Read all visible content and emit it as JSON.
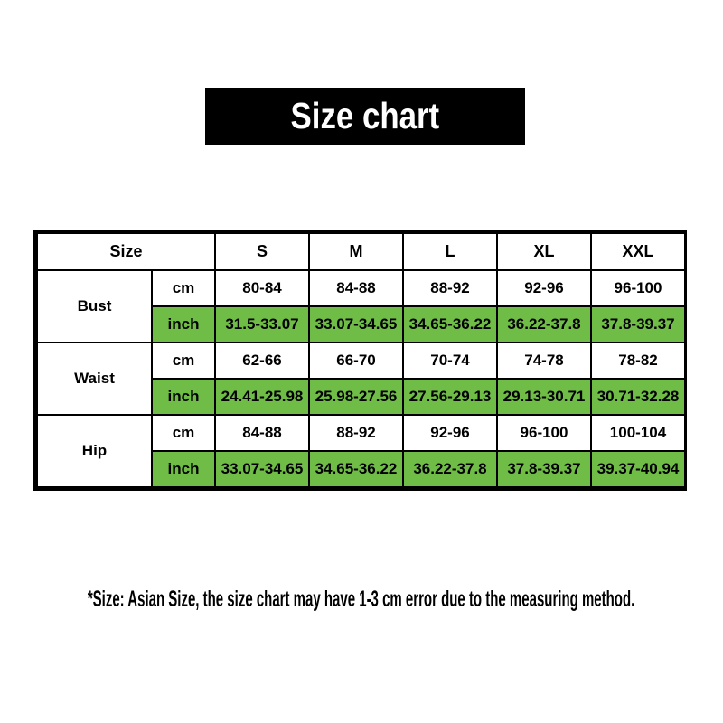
{
  "colors": {
    "highlight_green": "#6FBD47",
    "banner_bg": "#000000",
    "border_color": "#000000",
    "text_color": "#000000",
    "page_bg": "#FFFFFF"
  },
  "chart_data": {
    "type": "table",
    "title": "Size chart",
    "corner_label": "Size",
    "size_columns": [
      "S",
      "M",
      "L",
      "XL",
      "XXL"
    ],
    "unit_labels": {
      "cm": "cm",
      "inch": "inch"
    },
    "rows": [
      {
        "label": "Bust",
        "cm": [
          "80-84",
          "84-88",
          "88-92",
          "92-96",
          "96-100"
        ],
        "inch": [
          "31.5-33.07",
          "33.07-34.65",
          "34.65-36.22",
          "36.22-37.8",
          "37.8-39.37"
        ]
      },
      {
        "label": "Waist",
        "cm": [
          "62-66",
          "66-70",
          "70-74",
          "74-78",
          "78-82"
        ],
        "inch": [
          "24.41-25.98",
          "25.98-27.56",
          "27.56-29.13",
          "29.13-30.71",
          "30.71-32.28"
        ]
      },
      {
        "label": "Hip",
        "cm": [
          "84-88",
          "88-92",
          "92-96",
          "96-100",
          "100-104"
        ],
        "inch": [
          "33.07-34.65",
          "34.65-36.22",
          "36.22-37.8",
          "37.8-39.37",
          "39.37-40.94"
        ]
      }
    ],
    "layout_hints": {
      "highlighted_rows": "inch rows filled with green",
      "header_row_background": "white",
      "outer_border": "thick black",
      "inner_borders": "thin black"
    },
    "footnote": "*Size: Asian Size, the size chart may have 1-3 cm error due to the measuring method."
  }
}
